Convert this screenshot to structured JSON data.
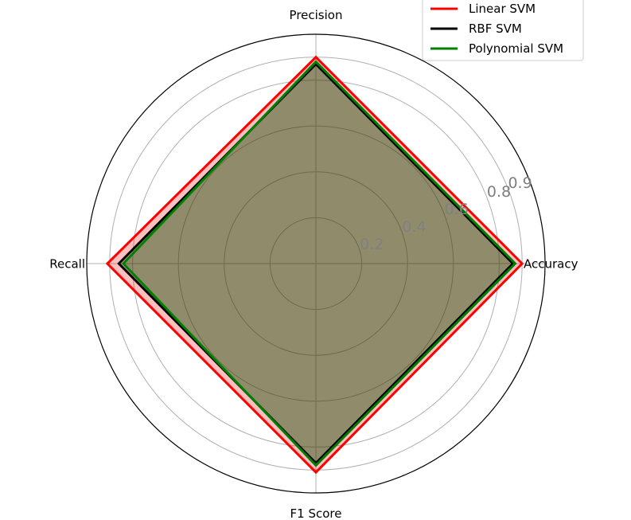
{
  "chart_data": {
    "type": "radar",
    "axes": [
      "Accuracy",
      "Precision",
      "Recall",
      "F1 Score"
    ],
    "r_ticks": [
      0.2,
      0.4,
      0.6,
      0.8,
      0.9
    ],
    "r_tick_labels": [
      "0.2",
      "0.4",
      "0.6",
      "0.8",
      "0.9"
    ],
    "r_max": 1.0,
    "grid": true,
    "legend": "top-right",
    "series": [
      {
        "name": "Linear SVM",
        "values": [
          0.9,
          0.9,
          0.91,
          0.91
        ],
        "color": "#ff0000",
        "fill": "#ff0000"
      },
      {
        "name": "RBF SVM",
        "values": [
          0.86,
          0.87,
          0.86,
          0.87
        ],
        "color": "#000000",
        "fill": "#000000"
      },
      {
        "name": "Polynomial SVM",
        "values": [
          0.87,
          0.88,
          0.84,
          0.88
        ],
        "color": "#008000",
        "fill": "#008000"
      }
    ]
  }
}
